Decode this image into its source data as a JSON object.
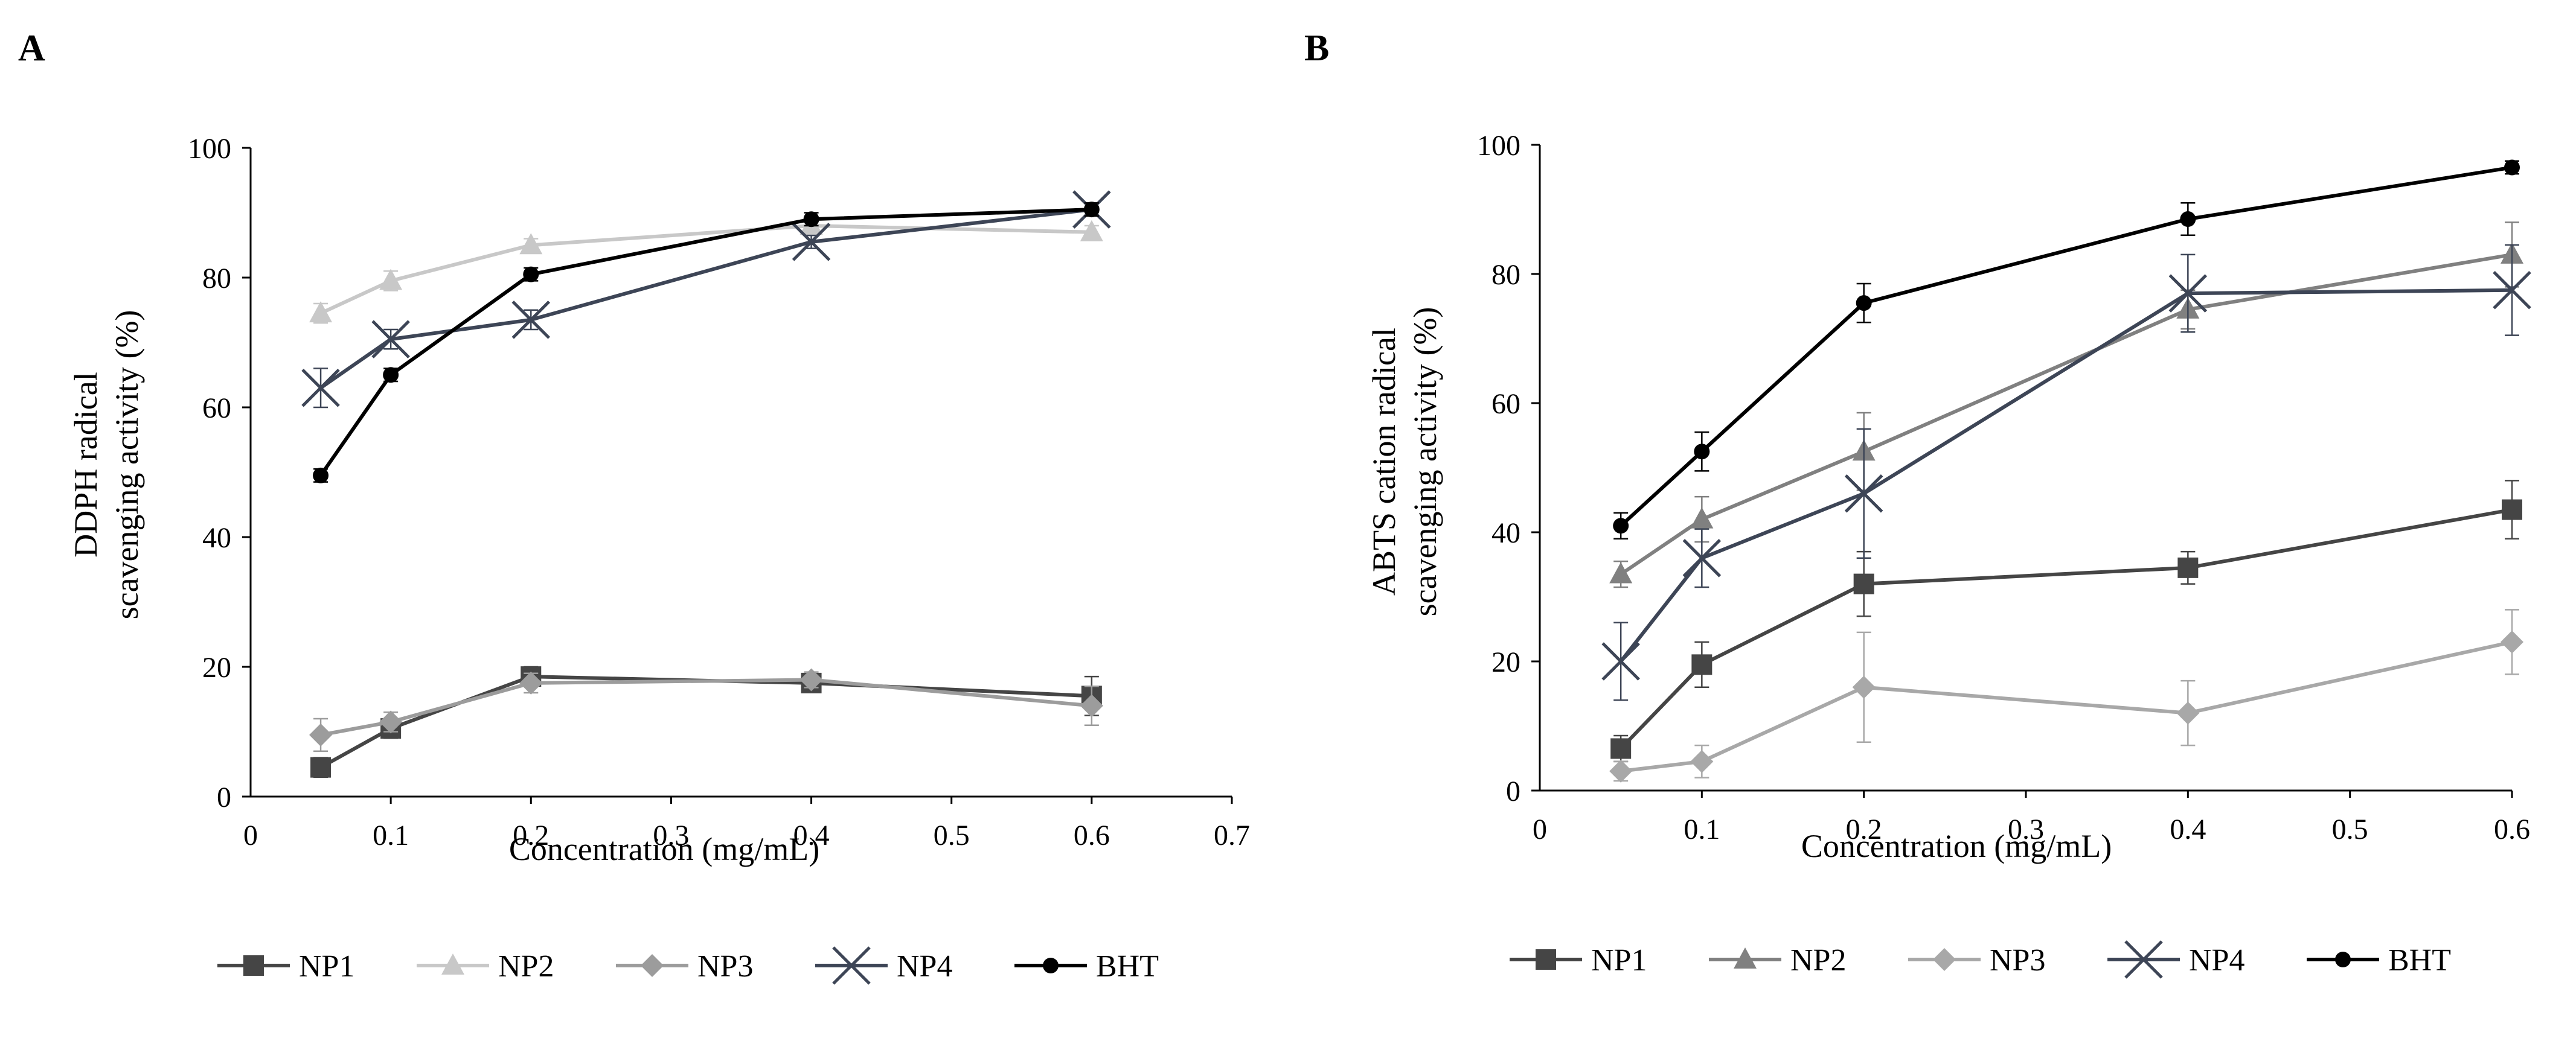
{
  "colors": {
    "NP1": "#454545",
    "NP2": "#c8c8c8",
    "NP3": "#9c9c9c",
    "NP4": "#3d4556",
    "BHT": "#000000",
    "NP2_B": "#808080",
    "NP3_B": "#a8a8a8"
  },
  "chart_data": [
    {
      "type": "line",
      "panel_label": "A",
      "xlabel": "Concentration (mg/mL)",
      "ylabel_line1": "DDPH radical",
      "ylabel_line2": "scavenging activity (%)",
      "xlim": [
        0,
        0.7
      ],
      "ylim": [
        0,
        100
      ],
      "x_ticks": [
        "0",
        "0.1",
        "0.2",
        "0.3",
        "0.4",
        "0.5",
        "0.6",
        "0.7"
      ],
      "y_ticks": [
        "0",
        "20",
        "40",
        "60",
        "80",
        "100"
      ],
      "grid": false,
      "legend_position": "bottom",
      "x": [
        0.05,
        0.1,
        0.2,
        0.4,
        0.6
      ],
      "series": [
        {
          "name": "NP1",
          "marker": "square",
          "values": [
            4.5,
            10.5,
            18.5,
            17.5,
            15.5
          ],
          "errors": [
            1.5,
            1.5,
            1.5,
            1.2,
            3.0
          ]
        },
        {
          "name": "NP2",
          "marker": "triangle",
          "values": [
            74.5,
            79.5,
            85,
            88,
            87
          ],
          "errors": [
            1.5,
            1.5,
            1.0,
            1.0,
            1.0
          ]
        },
        {
          "name": "NP3",
          "marker": "diamond",
          "values": [
            9.5,
            11.5,
            17.5,
            18,
            14
          ],
          "errors": [
            2.5,
            1.5,
            1.5,
            1.2,
            3.0
          ]
        },
        {
          "name": "NP4",
          "marker": "x",
          "values": [
            63,
            70.5,
            73.5,
            85.5,
            90.5
          ],
          "errors": [
            3.0,
            1.5,
            1.5,
            1.0,
            1.0
          ]
        },
        {
          "name": "BHT",
          "marker": "circle",
          "values": [
            49.5,
            65,
            80.5,
            89,
            90.5
          ],
          "errors": [
            1.0,
            1.0,
            1.0,
            1.0,
            1.0
          ]
        }
      ]
    },
    {
      "type": "line",
      "panel_label": "B",
      "xlabel": "Concentration (mg/mL)",
      "ylabel_line1": "ABTS cation radical",
      "ylabel_line2": "scavenging activity (%)",
      "xlim": [
        0,
        0.6
      ],
      "ylim": [
        0,
        100
      ],
      "x_ticks": [
        "0",
        "0.1",
        "0.2",
        "0.3",
        "0.4",
        "0.5",
        "0.6"
      ],
      "y_ticks": [
        "0",
        "20",
        "40",
        "60",
        "80",
        "100"
      ],
      "grid": false,
      "legend_position": "bottom",
      "x": [
        0.05,
        0.1,
        0.2,
        0.4,
        0.6
      ],
      "series": [
        {
          "name": "NP1",
          "marker": "square",
          "values": [
            6.5,
            19.5,
            32,
            34.5,
            43.5
          ],
          "errors": [
            2.0,
            3.5,
            5.0,
            2.5,
            4.5
          ]
        },
        {
          "name": "NP2",
          "marker": "triangle",
          "values": [
            33.5,
            42,
            52.5,
            74.5,
            83
          ],
          "errors": [
            2.0,
            3.5,
            6.0,
            3.0,
            5.0
          ]
        },
        {
          "name": "NP3",
          "marker": "diamond",
          "values": [
            3,
            4.5,
            16,
            12,
            23
          ],
          "errors": [
            1.5,
            2.5,
            8.5,
            5.0,
            5.0
          ]
        },
        {
          "name": "NP4",
          "marker": "x",
          "values": [
            20,
            36,
            46,
            77,
            77.5
          ],
          "errors": [
            6.0,
            4.5,
            10.0,
            6.0,
            7.0
          ]
        },
        {
          "name": "BHT",
          "marker": "circle",
          "values": [
            41,
            52.5,
            75.5,
            88.5,
            96.5
          ],
          "errors": [
            2.0,
            3.0,
            3.0,
            2.5,
            1.0
          ]
        }
      ]
    }
  ]
}
